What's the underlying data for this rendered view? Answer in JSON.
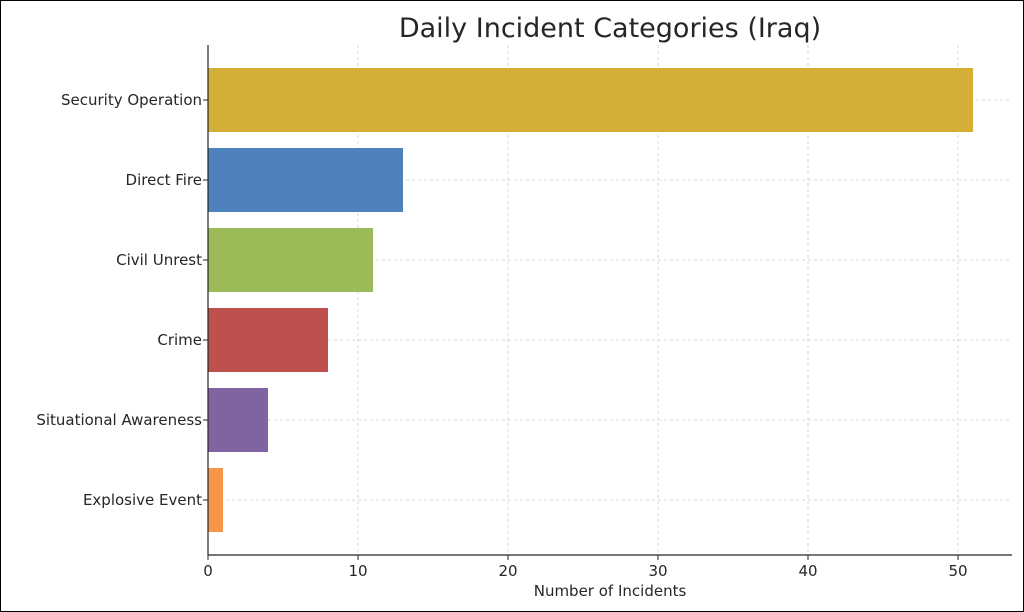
{
  "chart_data": {
    "type": "bar",
    "orientation": "horizontal",
    "title": "Daily Incident Categories (Iraq)",
    "xlabel": "Number of Incidents",
    "ylabel": "",
    "categories": [
      "Security Operation",
      "Direct Fire",
      "Civil Unrest",
      "Crime",
      "Situational Awareness",
      "Explosive Event"
    ],
    "values": [
      51,
      13,
      11,
      8,
      4,
      1
    ],
    "colors": [
      "#D4AF37",
      "#4F81BD",
      "#9BBB59",
      "#C0504D",
      "#8064A2",
      "#F79646"
    ],
    "xlim": [
      0,
      53.6
    ],
    "xticks": [
      0,
      10,
      20,
      30,
      40,
      50
    ],
    "xtick_labels": [
      "0",
      "10",
      "20",
      "30",
      "40",
      "50"
    ],
    "grid": true
  }
}
